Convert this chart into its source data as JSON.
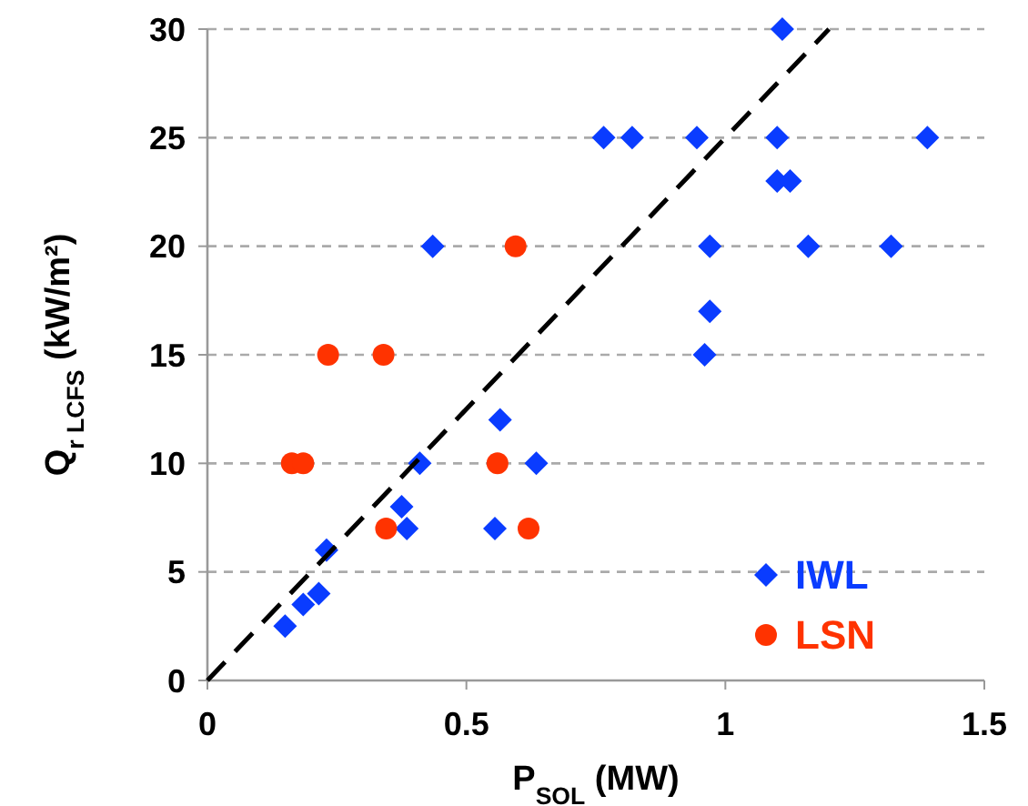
{
  "chart_data": {
    "type": "scatter",
    "xlabel": "P$_{SOL}$ (MW)",
    "ylabel": "Q$_{r LCFS}$ (kW/m²)",
    "xlim": [
      0,
      1.5
    ],
    "xticks": [
      0,
      0.5,
      1,
      1.5
    ],
    "ylim": [
      0,
      30
    ],
    "yticks": [
      0,
      5,
      10,
      15,
      20,
      25,
      30
    ],
    "grid": "y",
    "legend": "bottom right",
    "series": [
      {
        "name": "IWL",
        "color": "#0a3cff",
        "marker": "diamond",
        "x": [
          0.15,
          0.185,
          0.215,
          0.23,
          0.375,
          0.385,
          0.41,
          0.435,
          0.565,
          0.555,
          0.635,
          1.11,
          0.765,
          0.82,
          0.945,
          1.1,
          1.39,
          1.1,
          1.125,
          0.97,
          1.16,
          1.32,
          0.97,
          0.96
        ],
        "values": [
          2.5,
          3.5,
          4,
          6,
          8,
          7,
          10,
          20,
          12,
          7,
          10,
          30,
          25,
          25,
          25,
          25,
          25,
          23,
          23,
          20,
          20,
          20,
          17,
          15
        ]
      },
      {
        "name": "LSN",
        "color": "#ff3300",
        "marker": "circle",
        "x": [
          0.163,
          0.185,
          0.233,
          0.34,
          0.345,
          0.595,
          0.56,
          0.62
        ],
        "values": [
          10,
          10,
          15,
          15,
          7,
          20,
          10,
          7
        ]
      },
      {
        "type": "line",
        "color": "#000000",
        "marker": "none",
        "line_style": "dashed",
        "x": [
          0,
          1.2
        ],
        "values": [
          0,
          30
        ]
      }
    ]
  }
}
